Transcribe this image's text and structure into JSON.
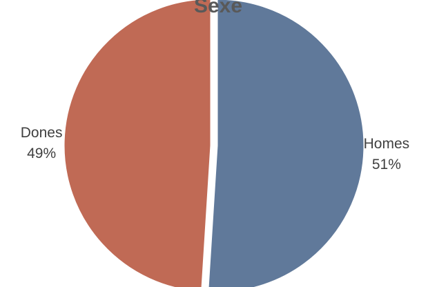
{
  "chart_data": {
    "type": "pie",
    "title": "Sexe",
    "categories": [
      "Homes",
      "Dones"
    ],
    "values": [
      51,
      49
    ],
    "labels": [
      "51%",
      "49%"
    ],
    "colors": [
      "#60799A",
      "#C06A55"
    ],
    "legend": "none",
    "start_angle_deg": 0,
    "direction": "clockwise",
    "exploded": true
  }
}
